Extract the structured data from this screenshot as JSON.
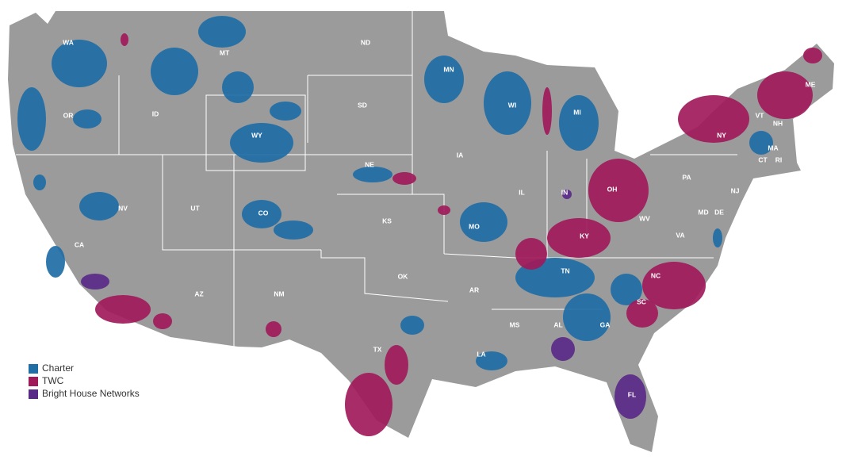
{
  "states": [
    "WA",
    "OR",
    "CA",
    "NV",
    "ID",
    "MT",
    "WY",
    "UT",
    "AZ",
    "CO",
    "NM",
    "ND",
    "SD",
    "NE",
    "KS",
    "OK",
    "TX",
    "MN",
    "IA",
    "MO",
    "AR",
    "LA",
    "WI",
    "IL",
    "MI",
    "IN",
    "OH",
    "KY",
    "TN",
    "MS",
    "AL",
    "GA",
    "FL",
    "SC",
    "NC",
    "VA",
    "WV",
    "PA",
    "NY",
    "VT",
    "NH",
    "ME",
    "MA",
    "CT",
    "RI",
    "NJ",
    "DE",
    "MD"
  ],
  "legend": [
    {
      "label": "Charter",
      "color": "#1f6ea6"
    },
    {
      "label": "TWC",
      "color": "#a01a5a"
    },
    {
      "label": "Bright House Networks",
      "color": "#5a2a88"
    }
  ]
}
